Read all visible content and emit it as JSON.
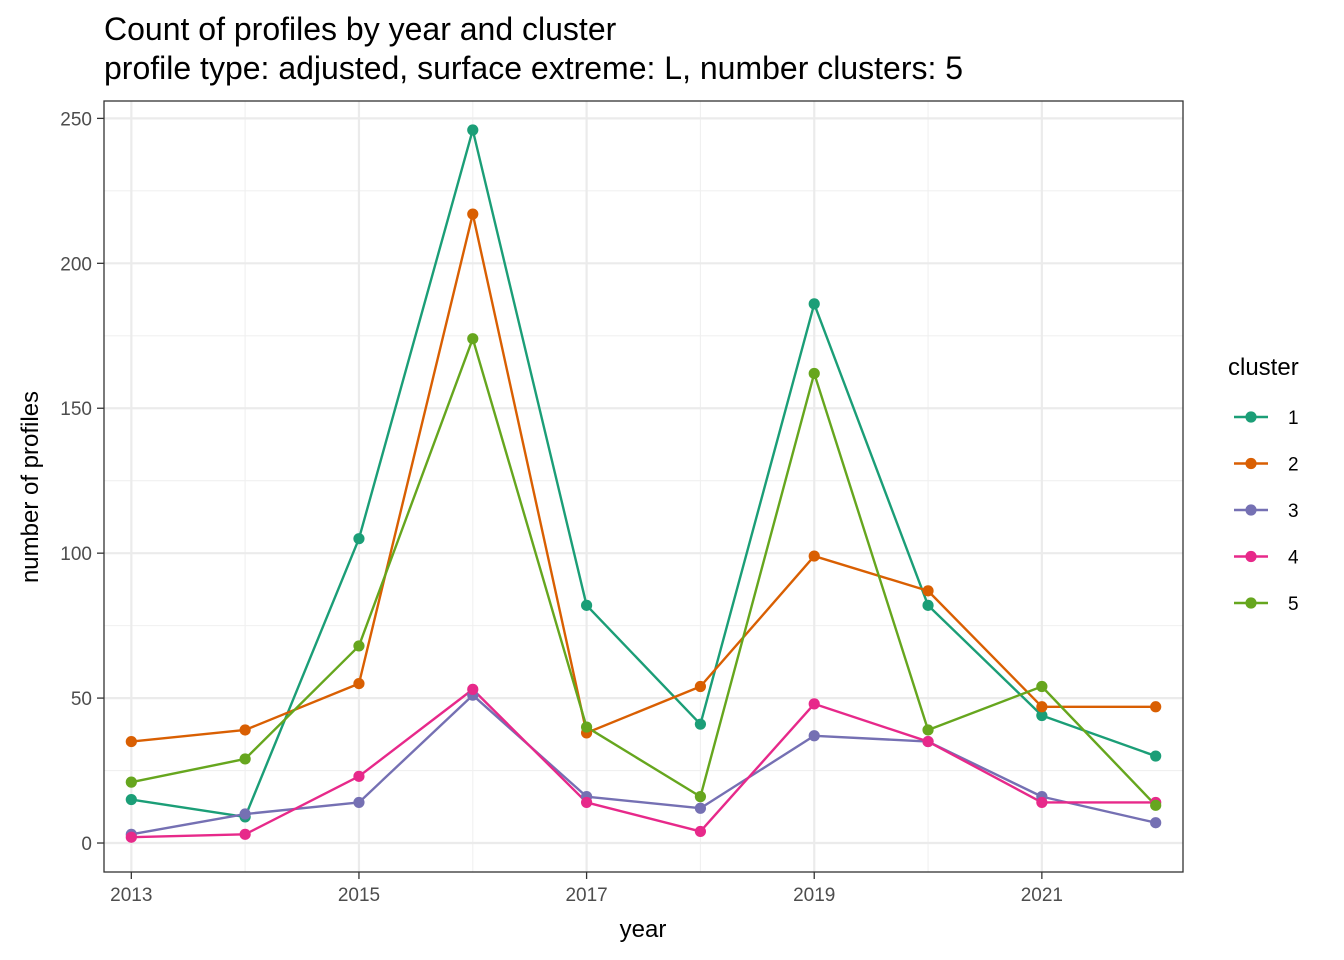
{
  "chart_data": {
    "type": "line",
    "title": "Count of profiles by year and cluster",
    "subtitle": "profile type: adjusted, surface extreme: L, number clusters: 5",
    "xlabel": "year",
    "ylabel": "number of profiles",
    "x": [
      2013,
      2014,
      2015,
      2016,
      2017,
      2018,
      2019,
      2020,
      2021,
      2022
    ],
    "xlim": [
      2012.76,
      2022.24
    ],
    "ylim": [
      -10,
      256
    ],
    "xticks": [
      2013,
      2015,
      2017,
      2019,
      2021
    ],
    "yticks": [
      0,
      50,
      100,
      150,
      200,
      250
    ],
    "grid": true,
    "legend_title": "cluster",
    "legend_position": "right",
    "series": [
      {
        "name": "1",
        "color": "#1b9e77",
        "values": [
          15,
          9,
          105,
          246,
          82,
          41,
          186,
          82,
          44,
          30
        ]
      },
      {
        "name": "2",
        "color": "#d95f02",
        "values": [
          35,
          39,
          55,
          217,
          38,
          54,
          99,
          87,
          47,
          47
        ]
      },
      {
        "name": "3",
        "color": "#7570b3",
        "values": [
          3,
          10,
          14,
          51,
          16,
          12,
          37,
          35,
          16,
          7
        ]
      },
      {
        "name": "4",
        "color": "#e7298a",
        "values": [
          2,
          3,
          23,
          53,
          14,
          4,
          48,
          35,
          14,
          14
        ]
      },
      {
        "name": "5",
        "color": "#66a61e",
        "values": [
          21,
          29,
          68,
          174,
          40,
          16,
          162,
          39,
          54,
          13
        ]
      }
    ]
  }
}
